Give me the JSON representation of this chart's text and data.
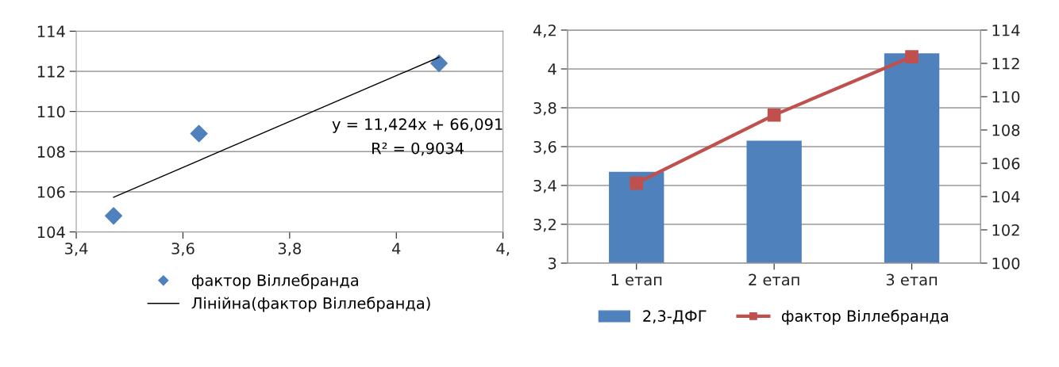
{
  "chart_data": [
    {
      "type": "scatter",
      "xlim": [
        3.4,
        4.2
      ],
      "ylim": [
        104,
        114
      ],
      "xticks": [
        {
          "value": 3.4,
          "label": "3,4"
        },
        {
          "value": 3.6,
          "label": "3,6"
        },
        {
          "value": 3.8,
          "label": "3,8"
        },
        {
          "value": 4.0,
          "label": "4"
        },
        {
          "value": 4.2,
          "label": "4,"
        }
      ],
      "yticks": [
        104,
        106,
        108,
        110,
        112,
        114
      ],
      "grid": "y",
      "legend": "bottom",
      "series": [
        {
          "name": "фактор Віллебранда",
          "type": "scatter",
          "marker": "diamond",
          "color": "#4f81bd",
          "x": [
            3.47,
            3.63,
            4.08
          ],
          "values": [
            104.8,
            108.9,
            112.4
          ]
        },
        {
          "name": "Лінійна(фактор Віллебранда)",
          "type": "line",
          "marker": "none",
          "color": "#000000",
          "x": [
            3.47,
            4.08
          ],
          "values": [
            105.73,
            112.7
          ]
        }
      ],
      "annotations": [
        "y = 11,424x + 66,091",
        "R² = 0,9034"
      ]
    },
    {
      "type": "bar",
      "categories": [
        "1 етап",
        "2 етап",
        "3 етап"
      ],
      "ylim": [
        3,
        4.2
      ],
      "yticks": [
        3,
        {
          "value": 3.2,
          "label": "3,2"
        },
        {
          "value": 3.4,
          "label": "3,4"
        },
        {
          "value": 3.6,
          "label": "3,6"
        },
        {
          "value": 3.8,
          "label": "3,8"
        },
        4,
        {
          "value": 4.2,
          "label": "4,2"
        }
      ],
      "y2lim": [
        100,
        114
      ],
      "y2ticks": [
        100,
        102,
        104,
        106,
        108,
        110,
        112,
        114
      ],
      "grid": "y",
      "legend": "bottom",
      "series": [
        {
          "name": "2,3-ДФГ",
          "type": "bar",
          "color": "#4f81bd",
          "values": [
            3.47,
            3.63,
            4.08
          ]
        },
        {
          "name": "фактор Віллебранда",
          "type": "line",
          "marker": "square",
          "axis": "y2",
          "color": "#c0504d",
          "values": [
            104.8,
            108.9,
            112.4
          ]
        }
      ]
    }
  ]
}
